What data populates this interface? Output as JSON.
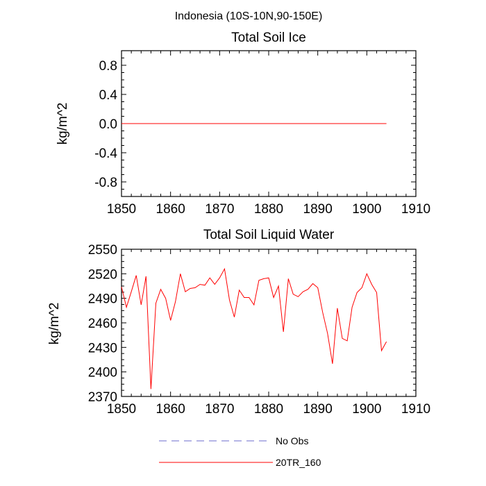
{
  "figure_title": "Indonesia (10S-10N,90-150E)",
  "chart_data": [
    {
      "type": "line",
      "title": "Total Soil Ice",
      "xlabel": "",
      "ylabel": "kg/m^2",
      "xlim": [
        1850,
        1910
      ],
      "ylim": [
        -1.0,
        1.0
      ],
      "x_ticks": [
        1850,
        1860,
        1870,
        1880,
        1890,
        1900,
        1910
      ],
      "y_ticks": [
        -0.8,
        -0.4,
        0.0,
        0.4,
        0.8
      ],
      "y_tick_labels": [
        "-0.8",
        "-0.4",
        "0.0",
        "0.4",
        "0.8"
      ],
      "series": [
        {
          "name": "20TR_160",
          "color": "#ff0000",
          "x": [
            1850,
            1904
          ],
          "values": [
            0.0,
            0.0
          ]
        }
      ]
    },
    {
      "type": "line",
      "title": "Total Soil Liquid Water",
      "xlabel": "",
      "ylabel": "kg/m^2",
      "xlim": [
        1850,
        1910
      ],
      "ylim": [
        2370,
        2550
      ],
      "x_ticks": [
        1850,
        1860,
        1870,
        1880,
        1890,
        1900,
        1910
      ],
      "y_ticks": [
        2370,
        2400,
        2430,
        2460,
        2490,
        2520,
        2550
      ],
      "y_tick_labels": [
        "2370",
        "2400",
        "2430",
        "2460",
        "2490",
        "2520",
        "2550"
      ],
      "series": [
        {
          "name": "20TR_160",
          "color": "#ff0000",
          "x": [
            1850,
            1851,
            1852,
            1853,
            1854,
            1855,
            1856,
            1857,
            1858,
            1859,
            1860,
            1861,
            1862,
            1863,
            1864,
            1865,
            1866,
            1867,
            1868,
            1869,
            1870,
            1871,
            1872,
            1873,
            1874,
            1875,
            1876,
            1877,
            1878,
            1879,
            1880,
            1881,
            1882,
            1883,
            1884,
            1885,
            1886,
            1887,
            1888,
            1889,
            1890,
            1891,
            1892,
            1893,
            1894,
            1895,
            1896,
            1897,
            1898,
            1899,
            1900,
            1901,
            1902,
            1903,
            1904
          ],
          "values": [
            2504,
            2479,
            2498,
            2518,
            2482,
            2517,
            2379,
            2484,
            2501,
            2490,
            2463,
            2486,
            2520,
            2498,
            2502,
            2503,
            2507,
            2506,
            2515,
            2507,
            2515,
            2526,
            2488,
            2467,
            2500,
            2491,
            2491,
            2482,
            2512,
            2514,
            2515,
            2491,
            2505,
            2449,
            2514,
            2495,
            2492,
            2498,
            2501,
            2508,
            2503,
            2473,
            2447,
            2410,
            2478,
            2441,
            2438,
            2479,
            2497,
            2503,
            2520,
            2507,
            2497,
            2426,
            2437
          ]
        }
      ]
    }
  ],
  "legend": [
    {
      "label": "No Obs",
      "color": "#6b6bcc",
      "style": "dashed"
    },
    {
      "label": "20TR_160",
      "color": "#ff0000",
      "style": "solid"
    }
  ]
}
